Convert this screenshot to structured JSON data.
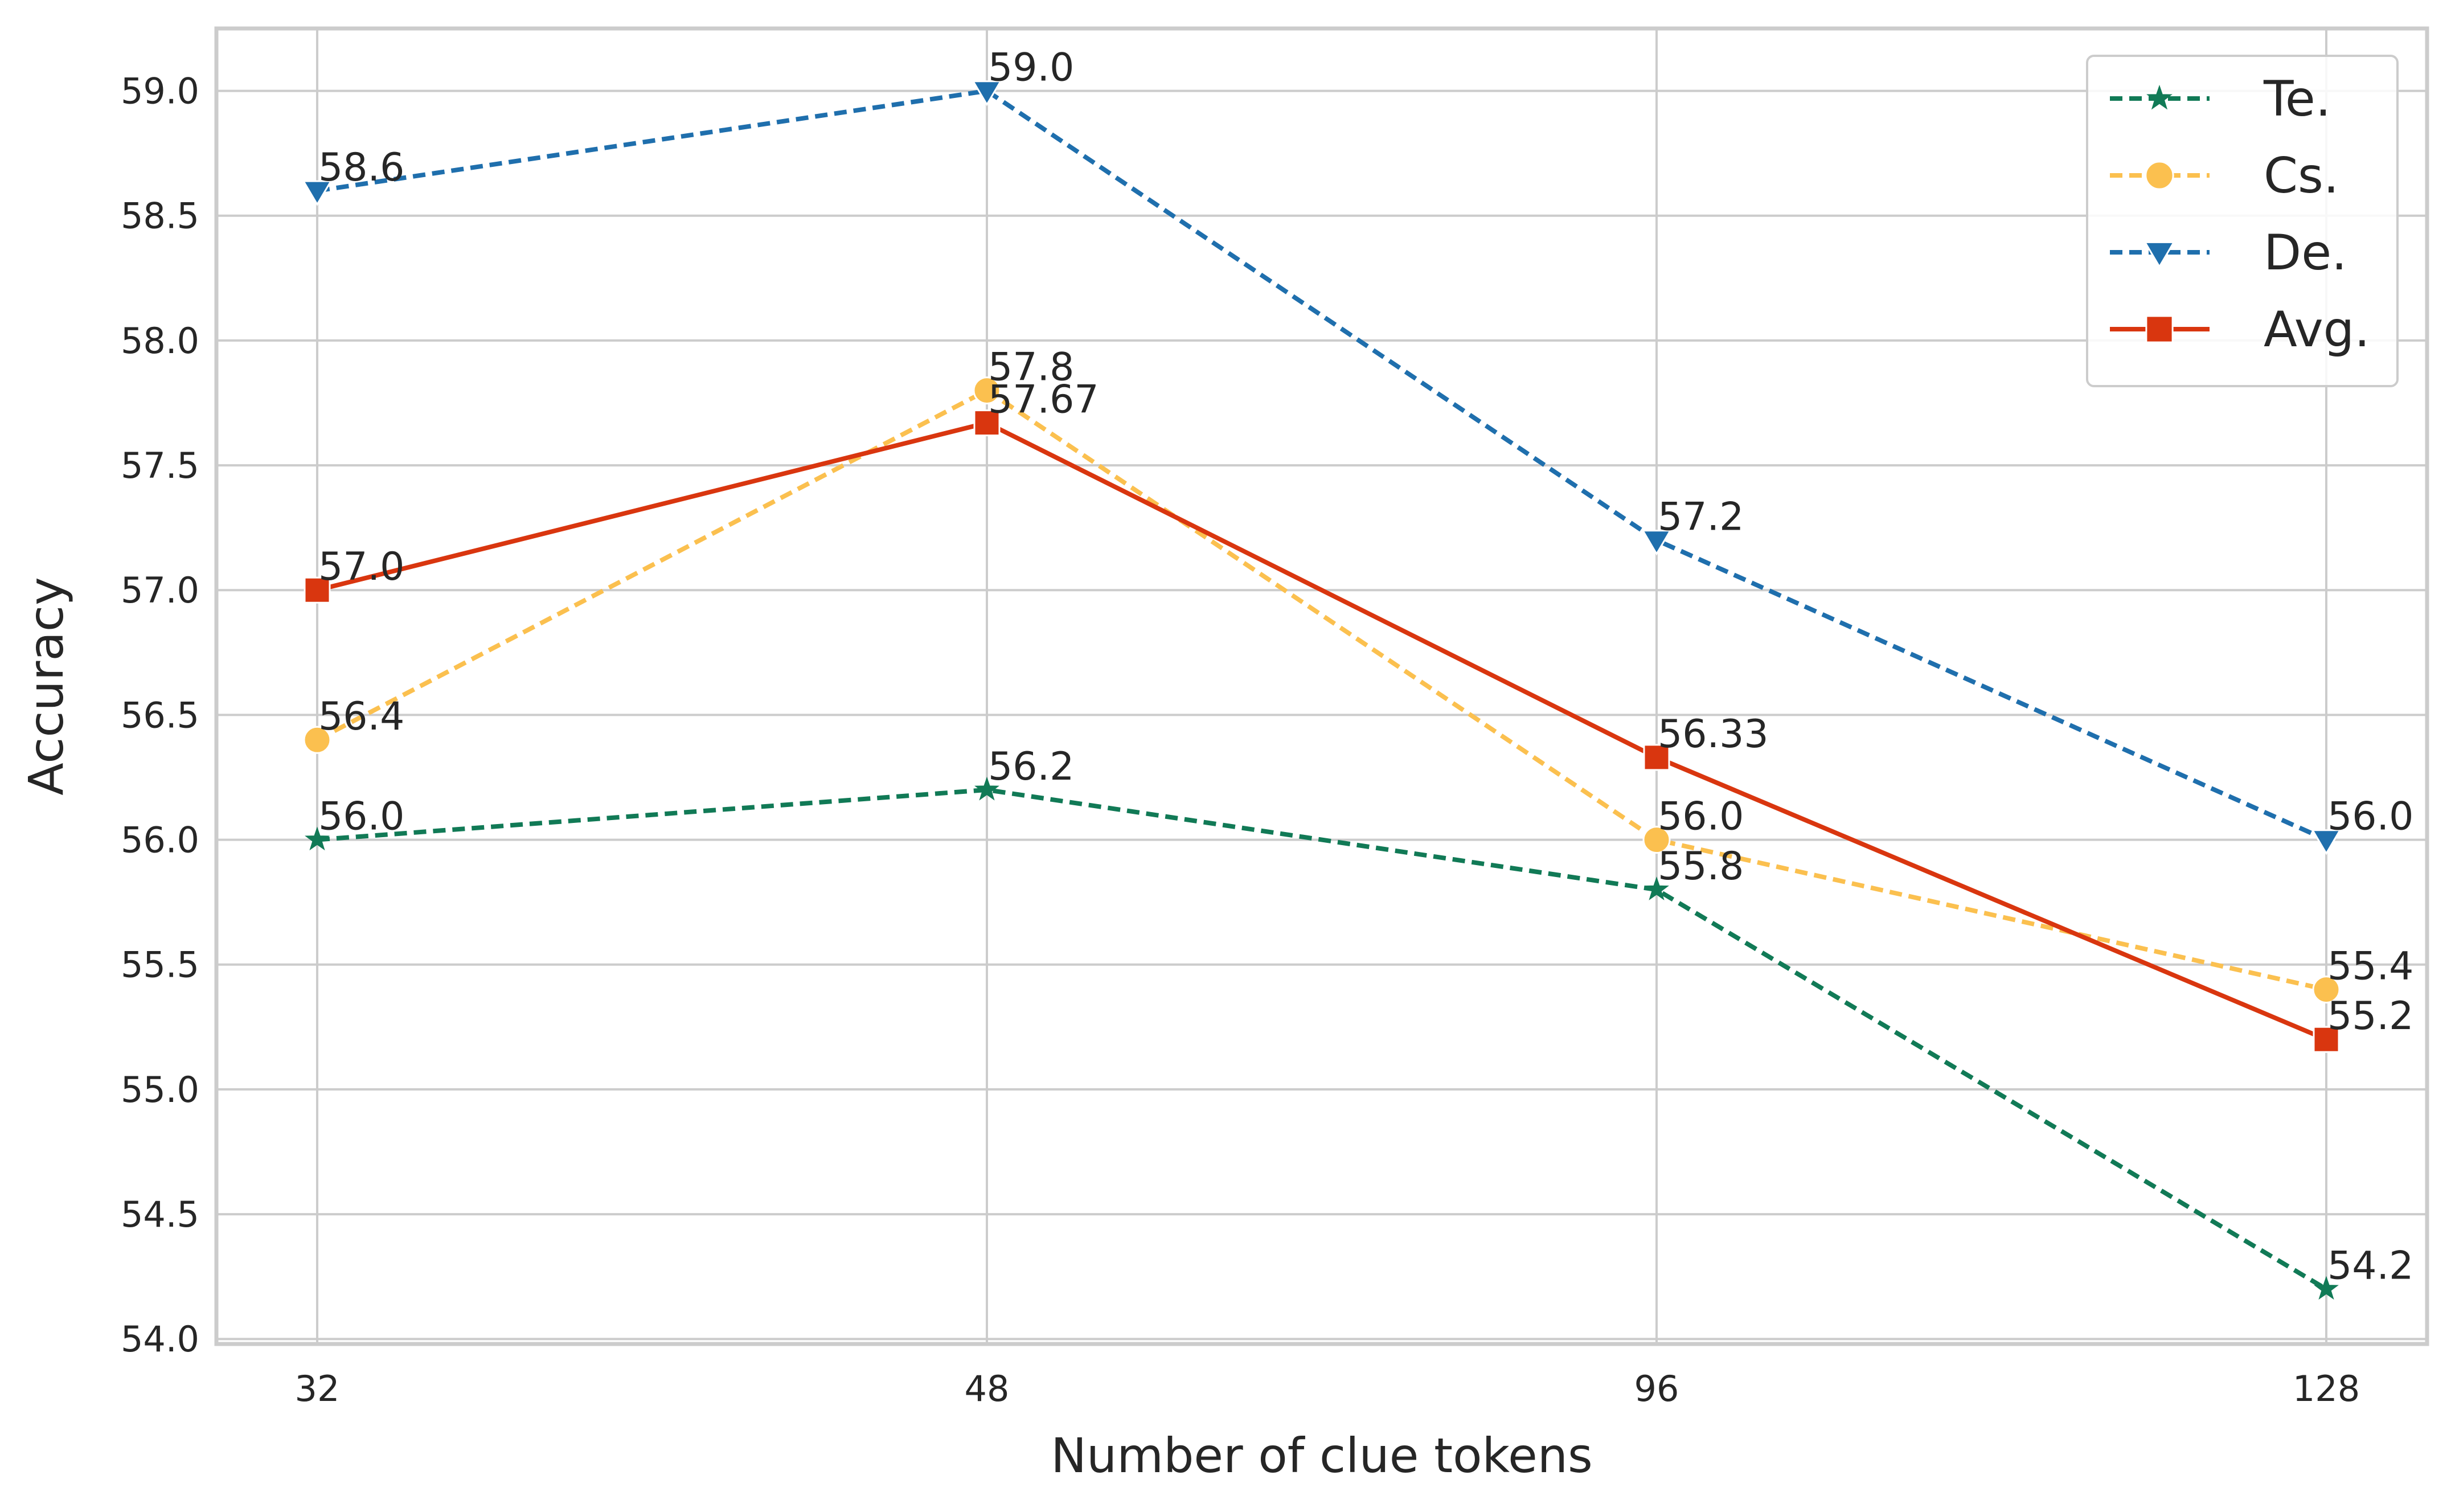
{
  "chart_data": {
    "type": "line",
    "title": "",
    "xlabel": "Number of clue tokens",
    "ylabel": "Accuracy",
    "categories": [
      "32",
      "48",
      "96",
      "128"
    ],
    "ylim": [
      53.98,
      59.25
    ],
    "yticks": [
      54.0,
      54.5,
      55.0,
      55.5,
      56.0,
      56.5,
      57.0,
      57.5,
      58.0,
      58.5,
      59.0
    ],
    "ytick_labels": [
      "54.0",
      "54.5",
      "55.0",
      "55.5",
      "56.0",
      "56.5",
      "57.0",
      "57.5",
      "58.0",
      "58.5",
      "59.0"
    ],
    "grid": true,
    "legend": {
      "position": "top-right"
    },
    "series": [
      {
        "name": "Te.",
        "values": [
          56.0,
          56.2,
          55.8,
          54.2
        ],
        "labels": [
          "56.0",
          "56.2",
          "55.8",
          "54.2"
        ],
        "color": "#117a56",
        "line_style": "dashed",
        "marker": "star"
      },
      {
        "name": "Cs.",
        "values": [
          56.4,
          57.8,
          56.0,
          55.4
        ],
        "labels": [
          "56.4",
          "57.8",
          "56.0",
          "55.4"
        ],
        "color": "#fbc04f",
        "line_style": "dashed",
        "marker": "circle"
      },
      {
        "name": "De.",
        "values": [
          58.6,
          59.0,
          57.2,
          56.0
        ],
        "labels": [
          "58.6",
          "59.0",
          "57.2",
          "56.0"
        ],
        "color": "#1f6fad",
        "line_style": "dashed",
        "marker": "triangle-down"
      },
      {
        "name": "Avg.",
        "values": [
          57.0,
          57.67,
          56.33,
          55.2
        ],
        "labels": [
          "57.0",
          "57.67",
          "56.33",
          "55.2"
        ],
        "color": "#d9360f",
        "line_style": "solid",
        "marker": "square"
      }
    ]
  }
}
